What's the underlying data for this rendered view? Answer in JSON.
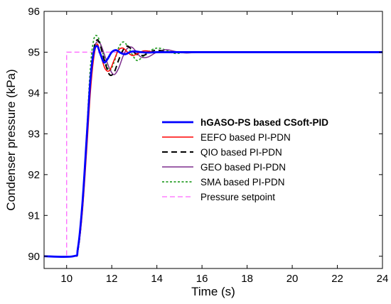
{
  "chart_data": {
    "type": "line",
    "title": "",
    "xlabel": "Time (s)",
    "ylabel": "Condenser pressure (kPa)",
    "xlim": [
      9,
      24
    ],
    "ylim": [
      89.7,
      96
    ],
    "xticks": [
      "10",
      "12",
      "14",
      "16",
      "18",
      "20",
      "22",
      "24"
    ],
    "yticks": [
      "90",
      "91",
      "92",
      "93",
      "94",
      "95",
      "96"
    ],
    "grid": false,
    "legend_position": "center-right",
    "series": [
      {
        "name": "hGASO-PS based CSoft-PID",
        "color": "#0000ff",
        "style": "solid-bold",
        "x": [
          9,
          10.3,
          10.5,
          10.7,
          10.9,
          11.05,
          11.2,
          11.35,
          11.5,
          11.65,
          11.8,
          12.0,
          12.2,
          12.4,
          12.6,
          12.8,
          13.0,
          13.3,
          13.6,
          14.0,
          14.5,
          15,
          16,
          18,
          20,
          22,
          24
        ],
        "y": [
          90,
          90,
          90.2,
          91.3,
          93.0,
          94.3,
          95.0,
          95.15,
          94.95,
          94.75,
          94.82,
          95.0,
          95.05,
          94.98,
          94.95,
          95.0,
          95.02,
          95.0,
          94.99,
          95.0,
          95.0,
          95.0,
          95.0,
          95.0,
          95.0,
          95.0,
          95.0
        ]
      },
      {
        "name": "EEFO based PI-PDN",
        "color": "#ff0000",
        "style": "solid",
        "x": [
          9,
          10.3,
          10.5,
          10.7,
          10.9,
          11.05,
          11.2,
          11.35,
          11.5,
          11.7,
          11.9,
          12.1,
          12.3,
          12.5,
          12.7,
          12.9,
          13.1,
          13.4,
          13.7,
          14.0,
          14.5,
          15,
          16,
          18,
          20,
          22,
          24
        ],
        "y": [
          90,
          90,
          90.15,
          91.1,
          92.7,
          94.0,
          94.85,
          95.2,
          94.95,
          94.6,
          94.55,
          94.8,
          95.05,
          95.1,
          95.0,
          94.92,
          94.95,
          95.03,
          95.02,
          94.99,
          95.0,
          95.0,
          95.0,
          95.0,
          95.0,
          95.0,
          95.0
        ]
      },
      {
        "name": "QIO based PI-PDN",
        "color": "#000000",
        "style": "dashed",
        "x": [
          9,
          10.3,
          10.5,
          10.7,
          10.9,
          11.05,
          11.2,
          11.35,
          11.5,
          11.7,
          11.9,
          12.1,
          12.3,
          12.5,
          12.7,
          12.9,
          13.1,
          13.4,
          13.7,
          14.0,
          14.5,
          15,
          16,
          18,
          20,
          22,
          24
        ],
        "y": [
          90,
          90,
          90.15,
          91.2,
          92.9,
          94.3,
          95.05,
          95.3,
          95.15,
          94.75,
          94.45,
          94.5,
          94.8,
          95.05,
          95.15,
          95.05,
          94.95,
          94.92,
          95.0,
          95.05,
          95.0,
          95.0,
          95.0,
          95.0,
          95.0,
          95.0,
          95.0
        ]
      },
      {
        "name": "GEO based PI-PDN",
        "color": "#7e2f8e",
        "style": "solid",
        "x": [
          9,
          10.3,
          10.5,
          10.7,
          10.9,
          11.05,
          11.2,
          11.35,
          11.5,
          11.7,
          11.9,
          12.1,
          12.3,
          12.5,
          12.7,
          12.9,
          13.1,
          13.3,
          13.6,
          14.0,
          14.4,
          14.8,
          15.3,
          16,
          18,
          20,
          22,
          24
        ],
        "y": [
          90,
          90,
          90.15,
          91.2,
          92.9,
          94.3,
          95.05,
          95.25,
          95.2,
          94.9,
          94.6,
          94.45,
          94.6,
          94.9,
          95.1,
          95.12,
          95.0,
          94.88,
          94.88,
          95.0,
          95.06,
          95.02,
          94.98,
          95.0,
          95.0,
          95.0,
          95.0,
          95.0
        ]
      },
      {
        "name": "SMA based PI-PDN",
        "color": "#2ca02c",
        "style": "dotted",
        "x": [
          9,
          10.3,
          10.5,
          10.7,
          10.9,
          11.05,
          11.2,
          11.35,
          11.5,
          11.7,
          11.9,
          12.1,
          12.3,
          12.5,
          12.7,
          12.9,
          13.1,
          13.3,
          13.6,
          14.0,
          14.4,
          14.8,
          15.3,
          16,
          18,
          20,
          22,
          24
        ],
        "y": [
          90,
          90,
          90.2,
          91.3,
          93.1,
          94.6,
          95.3,
          95.4,
          95.2,
          94.8,
          94.55,
          94.75,
          95.1,
          95.25,
          95.15,
          94.95,
          94.8,
          94.85,
          95.0,
          95.1,
          95.05,
          94.97,
          95.0,
          95.0,
          95.0,
          95.0,
          95.0,
          95.0
        ]
      },
      {
        "name": "Pressure setpoint",
        "color": "#ff66ff",
        "style": "dashed",
        "x": [
          9,
          10,
          10,
          24
        ],
        "y": [
          90,
          90,
          95,
          95
        ]
      }
    ]
  }
}
